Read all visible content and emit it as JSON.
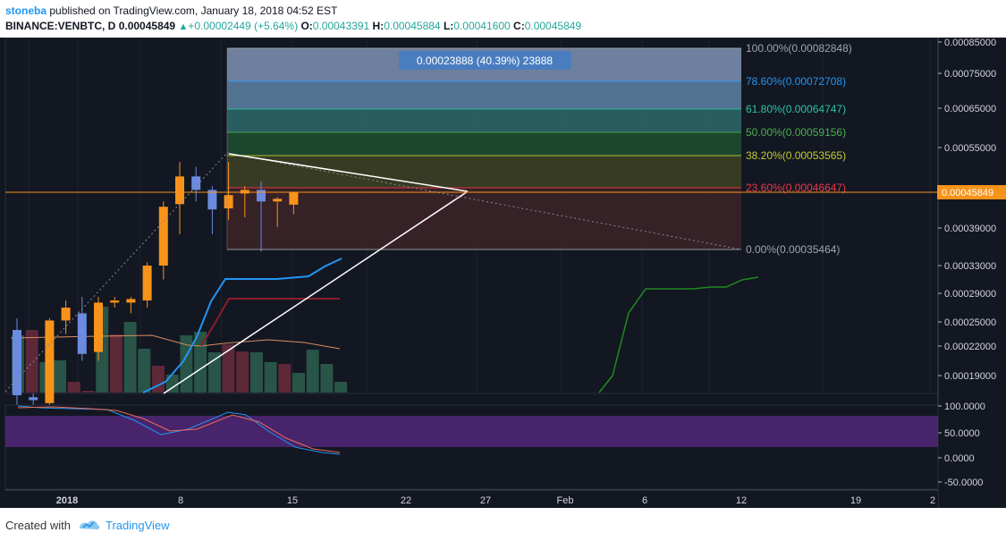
{
  "header": {
    "author": "stoneba",
    "published_text": "published on TradingView.com, January 18, 2018 04:52 EST",
    "symbol": "BINANCE:VENBTC, D",
    "last": "0.00045849",
    "change": "+0.00002449 (+5.64%)",
    "o_label": "O:",
    "o_value": "0.00043391",
    "h_label": "H:",
    "h_value": "0.00045884",
    "l_label": "L:",
    "l_value": "0.00041600",
    "c_label": "C:",
    "c_value": "0.00045849"
  },
  "footer": {
    "created_with": "Created with",
    "brand": "TradingView"
  },
  "colors": {
    "background": "#131722",
    "bull": "#f7931a",
    "bear": "#6b8be0",
    "price_label": "#f7931a",
    "rsi_band": "#5b2a86"
  },
  "chart_data": {
    "type": "candlestick",
    "price_axis": {
      "ticks": [
        "0.00085000",
        "0.00075000",
        "0.00065000",
        "0.00055000",
        "0.00039000",
        "0.00033000",
        "0.00029000",
        "0.00025000",
        "0.00022000",
        "0.00019000"
      ],
      "min": 0.00016,
      "max": 0.00086
    },
    "x_axis": {
      "ticks": [
        "2018",
        "8",
        "15",
        "22",
        "27",
        "Feb",
        "6",
        "12",
        "19",
        "2"
      ]
    },
    "current_price": "0.00045849",
    "candles": [
      {
        "o": 0.00024,
        "h": 0.000255,
        "l": 0.00016,
        "c": 0.00017
      },
      {
        "o": 0.000168,
        "h": 0.000172,
        "l": 0.00016,
        "c": 0.000165
      },
      {
        "o": 0.000162,
        "h": 0.000255,
        "l": 0.00016,
        "c": 0.000252
      },
      {
        "o": 0.000252,
        "h": 0.00028,
        "l": 0.000235,
        "c": 0.00027
      },
      {
        "o": 0.000262,
        "h": 0.000285,
        "l": 0.000205,
        "c": 0.000212
      },
      {
        "o": 0.000214,
        "h": 0.000285,
        "l": 0.000205,
        "c": 0.000277
      },
      {
        "o": 0.000277,
        "h": 0.000285,
        "l": 0.00027,
        "c": 0.00028
      },
      {
        "o": 0.000277,
        "h": 0.000285,
        "l": 0.000262,
        "c": 0.000282
      },
      {
        "o": 0.00028,
        "h": 0.000335,
        "l": 0.00027,
        "c": 0.00033
      },
      {
        "o": 0.00033,
        "h": 0.00044,
        "l": 0.00031,
        "c": 0.00043
      },
      {
        "o": 0.000435,
        "h": 0.00052,
        "l": 0.00038,
        "c": 0.00049
      },
      {
        "o": 0.00049,
        "h": 0.00051,
        "l": 0.00044,
        "c": 0.000462
      },
      {
        "o": 0.000462,
        "h": 0.00047,
        "l": 0.00038,
        "c": 0.000425
      },
      {
        "o": 0.000427,
        "h": 0.00052,
        "l": 0.000405,
        "c": 0.000452
      },
      {
        "o": 0.000455,
        "h": 0.00047,
        "l": 0.00041,
        "c": 0.000462
      },
      {
        "o": 0.000462,
        "h": 0.00048,
        "l": 0.000352,
        "c": 0.00044
      },
      {
        "o": 0.00044,
        "h": 0.000448,
        "l": 0.000392,
        "c": 0.000445
      },
      {
        "o": 0.000434,
        "h": 0.000459,
        "l": 0.000416,
        "c": 0.000458
      }
    ],
    "fibonacci": [
      {
        "label": "100.00%(0.00082848)",
        "price": 0.00082848,
        "color": "#a0a4ad",
        "fill": "#7f93b3"
      },
      {
        "label": "78.60%(0.00072708)",
        "price": 0.00072708,
        "color": "#2196f3",
        "fill": "#5e82a6"
      },
      {
        "label": "61.80%(0.00064747)",
        "price": 0.00064747,
        "color": "#26c6a0",
        "fill": "#2e6a6a"
      },
      {
        "label": "50.00%(0.00059156)",
        "price": 0.00059156,
        "color": "#4caf50",
        "fill": "#1f5030"
      },
      {
        "label": "38.20%(0.00053565)",
        "price": 0.00053565,
        "color": "#c0ca33",
        "fill": "#3e4224"
      },
      {
        "label": "23.60%(0.00046647)",
        "price": 0.00046647,
        "color": "#f23645",
        "fill": "#3d2328"
      },
      {
        "label": "0.00%(0.00035464)",
        "price": 0.00035464,
        "color": "#a0a4ad",
        "fill": null
      }
    ],
    "measure_label": "0.00023888 (40.39%) 23888",
    "rsi_axis": {
      "ticks": [
        "100.0000",
        "50.0000",
        "0.0000",
        "-50.0000"
      ],
      "min": -60,
      "max": 115
    }
  }
}
